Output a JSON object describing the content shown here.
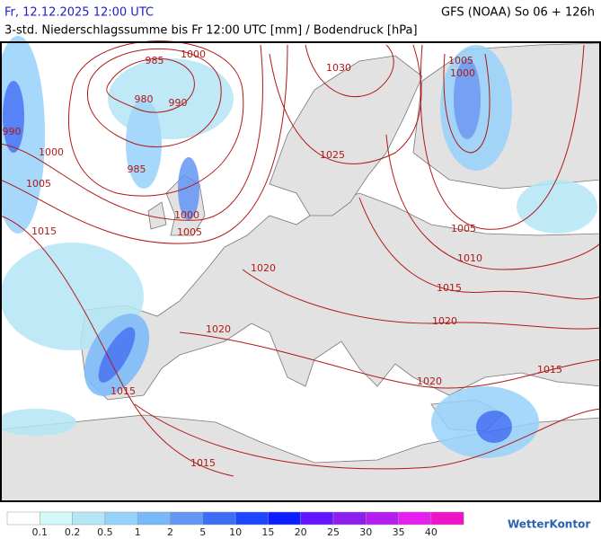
{
  "header": {
    "date": "Fr, 12.12.2025 12:00 UTC",
    "model": "GFS (NOAA) So 06 + 126h",
    "subtitle": "3-std. Niederschlagssumme bis Fr 12:00 UTC [mm] / Bodendruck [hPa]"
  },
  "isobar_labels": [
    "985",
    "1000",
    "980",
    "990",
    "990",
    "1000",
    "985",
    "1005",
    "1000",
    "1005",
    "1015",
    "1030",
    "1025",
    "1005",
    "1000",
    "1005",
    "1010",
    "1015",
    "1020",
    "1020",
    "1020",
    "1015",
    "1020",
    "1015",
    "1015"
  ],
  "legend": {
    "colors": [
      "#ffffff",
      "#d2fafa",
      "#b4e6f5",
      "#96d2fa",
      "#78b9fa",
      "#6496f5",
      "#3c6ef5",
      "#1e46ff",
      "#0a1eff",
      "#6414ff",
      "#8c1ef0",
      "#b41ef0",
      "#e61ef0",
      "#f014c8"
    ],
    "labels": [
      0.1,
      0.2,
      0.5,
      1,
      2,
      5,
      10,
      15,
      20,
      25,
      30,
      35,
      40
    ]
  },
  "brand": "WetterKontor"
}
